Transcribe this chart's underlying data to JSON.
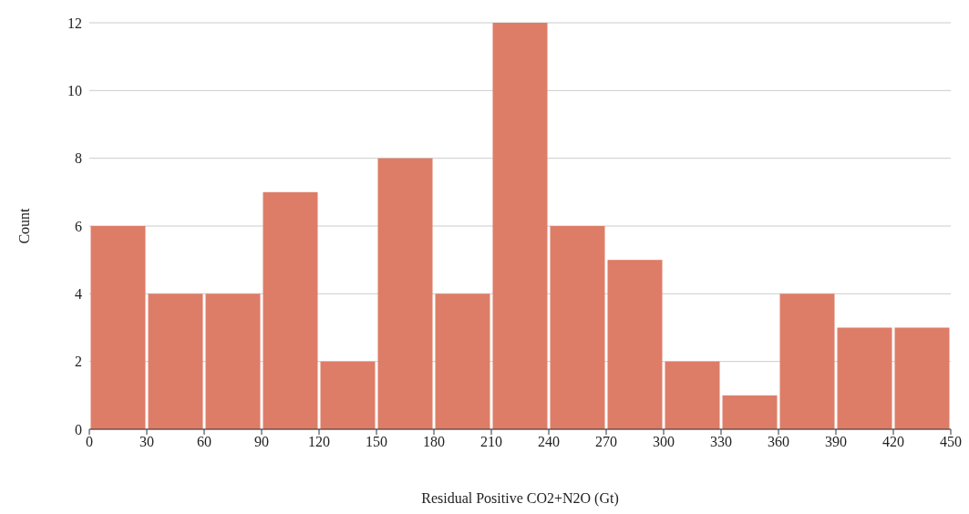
{
  "chart_data": {
    "type": "histogram",
    "xlabel": "Residual Positive CO2+N2O (Gt)",
    "ylabel": "Count",
    "bins": [
      0,
      30,
      60,
      90,
      120,
      150,
      180,
      210,
      240,
      270,
      300,
      330,
      360,
      390,
      420,
      450
    ],
    "values": [
      6,
      4,
      4,
      7,
      2,
      8,
      4,
      12,
      6,
      5,
      2,
      1,
      4,
      3,
      3
    ],
    "color": "#dd7d68",
    "xlim": [
      0,
      450
    ],
    "xticks": [
      0,
      30,
      60,
      90,
      120,
      150,
      180,
      210,
      240,
      270,
      300,
      330,
      360,
      390,
      420,
      450
    ],
    "ylim": [
      0,
      12
    ],
    "yticks": [
      0,
      2,
      4,
      6,
      8,
      10,
      12
    ],
    "grid": "y"
  }
}
